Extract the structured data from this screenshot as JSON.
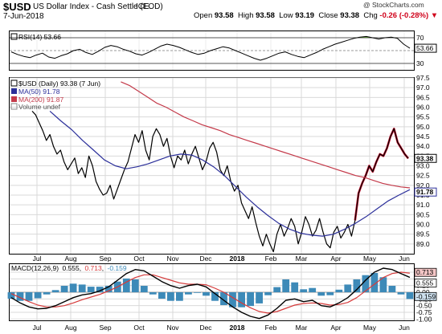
{
  "header": {
    "symbol": "$USD",
    "description": "US Dollar Index - Cash Settle (EOD)",
    "exchange": "ICE",
    "date": "7-Jun-2018",
    "copyright": "@ StockCharts.com",
    "quote": {
      "open_label": "Open",
      "open": "93.58",
      "high_label": "High",
      "high": "93.58",
      "low_label": "Low",
      "low": "93.19",
      "close_label": "Close",
      "close": "93.38",
      "chg_label": "Chg",
      "chg": "-0.26 (-0.28%)",
      "down_arrow": "▼"
    }
  },
  "colors": {
    "price": "#000000",
    "price_highlight": "#c8102e",
    "ma50": "#2b2f9a",
    "ma200": "#c43a4a",
    "rsi": "#000000",
    "rsi_fill_over": "#5a8a3a",
    "macd": "#000000",
    "signal": "#d63a3a",
    "histogram": "#3d8ab8",
    "grid": "#d9d9d9"
  },
  "chart_data": [
    {
      "type": "line",
      "panel": "RSI",
      "legend": "RSI(14) 53.66",
      "series": [
        {
          "name": "RSI(14)",
          "values": [
            48,
            44,
            41,
            39,
            43,
            46,
            40,
            38,
            42,
            45,
            50,
            52,
            47,
            44,
            49,
            55,
            58,
            56,
            52,
            49,
            45,
            43,
            47,
            52,
            57,
            60,
            58,
            55,
            51,
            47,
            44,
            46,
            50,
            53,
            56,
            54,
            50,
            46,
            42,
            38,
            35,
            38,
            42,
            46,
            48,
            44,
            41,
            39,
            43,
            47,
            52,
            56,
            60,
            63,
            66,
            69,
            71,
            72,
            70,
            68,
            70,
            71,
            69,
            60,
            53.66
          ]
        }
      ],
      "ylim": [
        20,
        80
      ],
      "tick_labels": [
        "70",
        "53.66",
        "30"
      ],
      "reference_lines": [
        70,
        50,
        30
      ]
    },
    {
      "type": "line",
      "panel": "Price",
      "title": "$USD (Daily) 93.38 (7 Jun)",
      "legend": [
        "$USD (Daily) 93.38 (7 Jun)",
        "MA(50) 91.78",
        "MA(200) 91.87",
        "Volume undef"
      ],
      "x_ticks": [
        "Jul",
        "Aug",
        "Sep",
        "Oct",
        "Nov",
        "Dec",
        "2018",
        "Feb",
        "Mar",
        "Apr",
        "May",
        "Jun"
      ],
      "ylim": [
        88.5,
        97.5
      ],
      "y_ticks": [
        89.0,
        89.5,
        90.0,
        90.5,
        91.0,
        91.5,
        92.0,
        92.5,
        93.0,
        93.5,
        94.0,
        94.5,
        95.0,
        95.5,
        96.0,
        96.5,
        97.0,
        97.5
      ],
      "price_label": "93.38",
      "ma50_label": "91.78",
      "ma200_label": "91.87",
      "series": [
        {
          "name": "$USD",
          "values": [
            95.8,
            95.6,
            95.2,
            94.8,
            94.3,
            94.6,
            94.0,
            93.6,
            93.8,
            93.2,
            92.8,
            93.1,
            93.4,
            92.6,
            92.9,
            92.4,
            93.5,
            93.0,
            92.2,
            91.8,
            91.5,
            91.6,
            92.0,
            91.3,
            91.8,
            92.3,
            92.8,
            93.2,
            93.9,
            94.6,
            94.2,
            94.8,
            93.8,
            93.3,
            94.5,
            94.9,
            94.6,
            94.0,
            94.4,
            93.5,
            92.9,
            93.5,
            93.3,
            93.8,
            93.1,
            93.6,
            94.0,
            93.4,
            92.8,
            93.2,
            93.9,
            94.2,
            93.7,
            92.8,
            92.5,
            93.0,
            92.2,
            91.7,
            92.0,
            91.1,
            90.7,
            90.3,
            90.9,
            90.1,
            89.4,
            88.9,
            89.5,
            89.0,
            88.6,
            89.5,
            90.0,
            89.4,
            89.8,
            90.3,
            89.9,
            89.0,
            89.6,
            90.4,
            90.0,
            89.4,
            89.7,
            90.3,
            89.6,
            89.0,
            88.8,
            89.6,
            89.9,
            89.3,
            89.6,
            90.0,
            89.4,
            90.2,
            91.6,
            92.1,
            92.5,
            93.0,
            92.7,
            93.2,
            93.6,
            93.5,
            93.9,
            94.5,
            94.9,
            94.2,
            93.9,
            93.6,
            93.38
          ],
          "highlight_from_index": 91
        },
        {
          "name": "MA(200)",
          "x_start_index": 25,
          "values": [
            97.3,
            97.1,
            96.8,
            96.5,
            96.2,
            96.0,
            95.75,
            95.5,
            95.3,
            95.1,
            94.95,
            94.8,
            94.6,
            94.45,
            94.3,
            94.15,
            94.0,
            93.85,
            93.7,
            93.55,
            93.4,
            93.25,
            93.1,
            92.95,
            92.8,
            92.65,
            92.5,
            92.4,
            92.25,
            92.1,
            92.0,
            91.92,
            91.87
          ]
        },
        {
          "name": "MA(50)",
          "x_start_index": 5,
          "values": [
            95.8,
            95.3,
            94.85,
            94.3,
            93.8,
            93.3,
            93.0,
            92.85,
            92.95,
            93.1,
            93.3,
            93.5,
            93.6,
            93.55,
            93.3,
            92.95,
            92.5,
            91.95,
            91.4,
            90.9,
            90.45,
            90.05,
            89.75,
            89.55,
            89.45,
            89.4,
            89.5,
            89.75,
            90.05,
            90.4,
            90.8,
            91.2,
            91.5,
            91.78
          ]
        }
      ]
    },
    {
      "type": "line",
      "panel": "MACD",
      "legend": "MACD(12,26,9) 0.555, 0.713, -0.159",
      "legend_parts": {
        "label": "MACD(12,26,9)",
        "macd": "0.555",
        "signal": "0.713",
        "hist": "-0.159"
      },
      "ylim": [
        -1.05,
        1.05
      ],
      "y_ticks": [
        0.75,
        0.5,
        0.25,
        0.0,
        -0.25,
        -0.5,
        -0.75,
        -1.0
      ],
      "y_tick_labels": [
        "",
        "",
        "0.25",
        "0.00",
        "-0.25",
        "-0.50",
        "-0.75",
        "-1.00"
      ],
      "value_labels": [
        "0.713",
        "0.555",
        "-0.159"
      ],
      "x_ticks": [
        "Jul",
        "Aug",
        "Sep",
        "Oct",
        "Nov",
        "Dec",
        "2018",
        "Feb",
        "Mar",
        "Apr",
        "May",
        "Jun"
      ],
      "series": [
        {
          "name": "MACD",
          "values": [
            -0.2,
            -0.4,
            -0.55,
            -0.62,
            -0.6,
            -0.5,
            -0.35,
            -0.2,
            -0.1,
            -0.05,
            0.05,
            0.2,
            0.45,
            0.7,
            0.85,
            0.8,
            0.6,
            0.4,
            0.25,
            0.15,
            0.25,
            0.3,
            0.2,
            -0.05,
            -0.3,
            -0.55,
            -0.75,
            -0.9,
            -0.98,
            -0.85,
            -0.6,
            -0.3,
            -0.25,
            -0.35,
            -0.3,
            -0.5,
            -0.55,
            -0.4,
            -0.2,
            0.1,
            0.45,
            0.75,
            0.9,
            0.85,
            0.7,
            0.555
          ]
        },
        {
          "name": "Signal",
          "values": [
            -0.05,
            -0.2,
            -0.35,
            -0.48,
            -0.55,
            -0.55,
            -0.5,
            -0.4,
            -0.28,
            -0.18,
            -0.08,
            0.05,
            0.2,
            0.38,
            0.55,
            0.65,
            0.65,
            0.55,
            0.45,
            0.35,
            0.3,
            0.3,
            0.28,
            0.15,
            0.0,
            -0.2,
            -0.4,
            -0.58,
            -0.72,
            -0.78,
            -0.72,
            -0.6,
            -0.48,
            -0.42,
            -0.4,
            -0.42,
            -0.48,
            -0.46,
            -0.38,
            -0.2,
            0.05,
            0.3,
            0.55,
            0.7,
            0.75,
            0.713
          ]
        }
      ]
    }
  ]
}
